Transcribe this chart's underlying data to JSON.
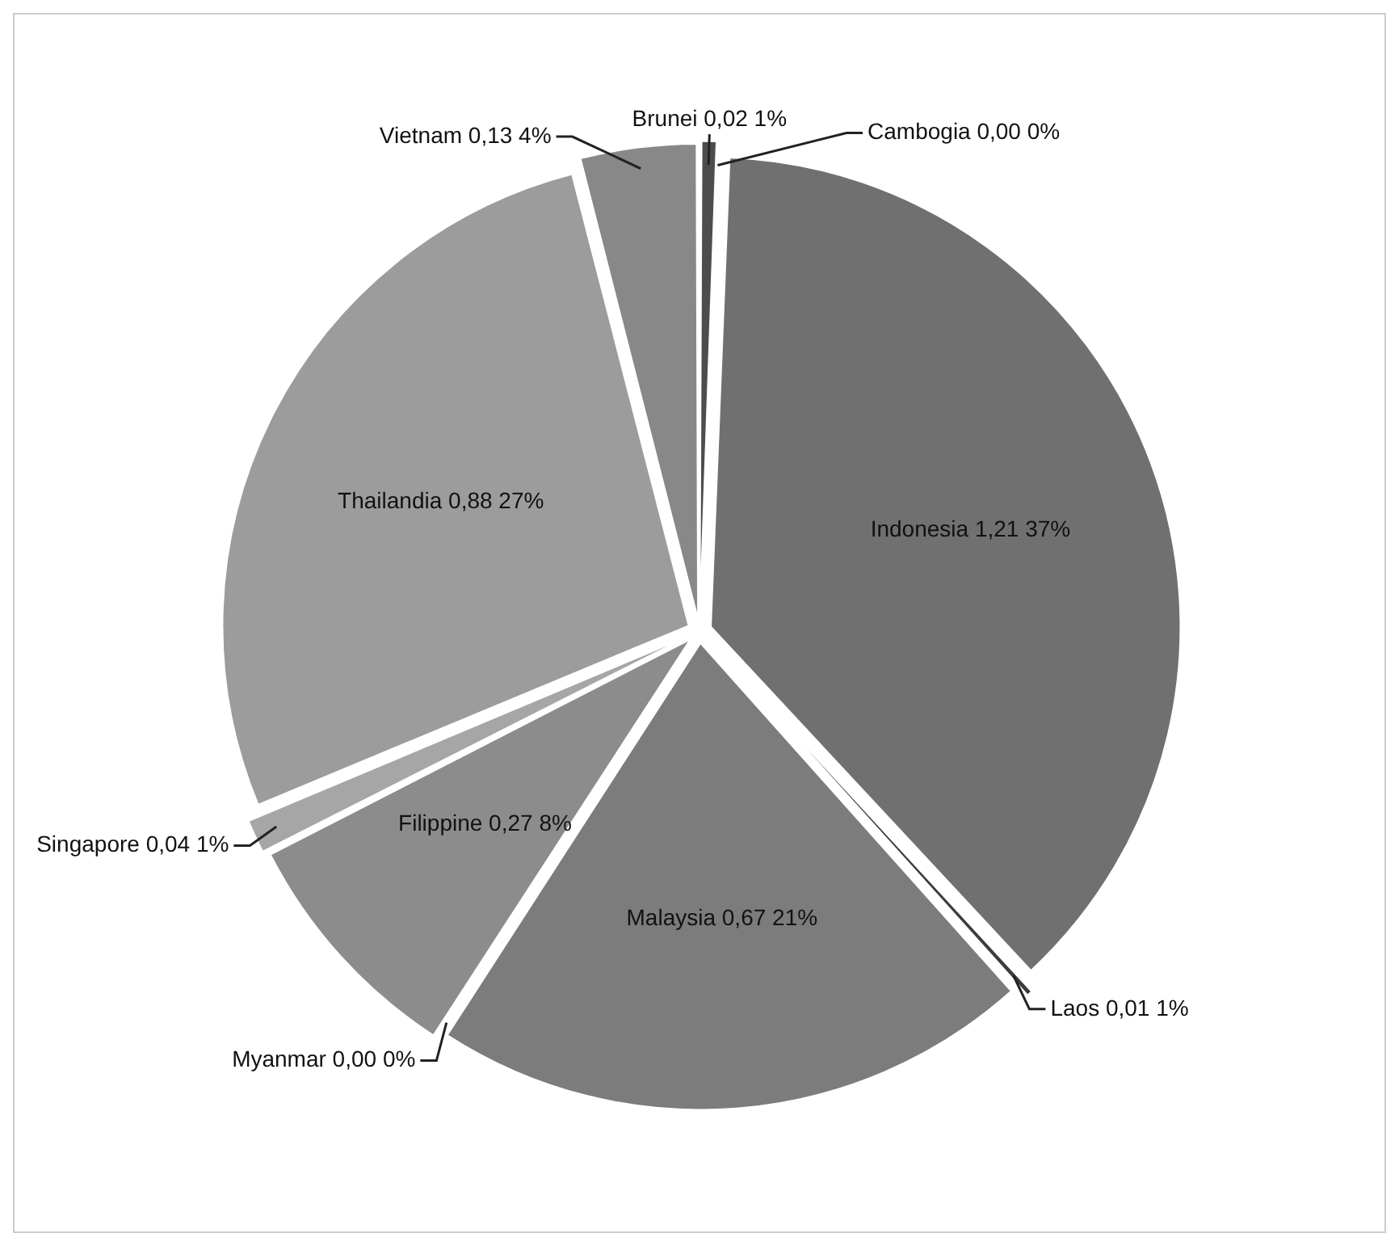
{
  "chart_data": {
    "type": "pie",
    "categories": [
      "Brunei",
      "Cambogia",
      "Indonesia",
      "Laos",
      "Malaysia",
      "Myanmar",
      "Filippine",
      "Singapore",
      "Thailandia",
      "Vietnam"
    ],
    "values": [
      0.02,
      0.0,
      1.21,
      0.01,
      0.67,
      0.0,
      0.27,
      0.04,
      0.88,
      0.13
    ],
    "value_labels": [
      "0,02 1%",
      "0,00 0%",
      "1,21 37%",
      "0,01 1%",
      "0,67 21%",
      "0,00 0%",
      "0,27 8%",
      "0,04 1%",
      "0,88 27%",
      "0,13 4%"
    ],
    "colors": [
      "#4d4d4d",
      "#5a5a5a",
      "#707070",
      "#3c3c3c",
      "#7c7c7c",
      "#b0b0b0",
      "#8c8c8c",
      "#a6a6a6",
      "#9c9c9c",
      "#888888"
    ],
    "legend": false
  }
}
